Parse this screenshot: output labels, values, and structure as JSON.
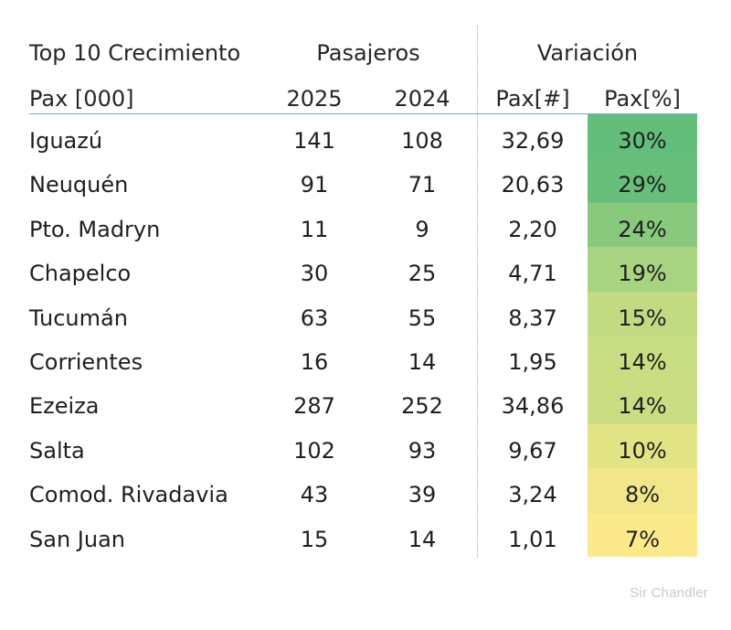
{
  "header": {
    "title": "Top 10 Crecimiento",
    "group_pax": "Pasajeros",
    "group_var": "Variación",
    "unit": "Pax [000]",
    "col_2025": "2025",
    "col_2024": "2024",
    "col_abs": "Pax[#]",
    "col_pct": "Pax[%]"
  },
  "rows": [
    {
      "name": "Iguazú",
      "y2025": "141",
      "y2024": "108",
      "abs": "32,69",
      "pct": "30%",
      "heat_color": "#63be7b"
    },
    {
      "name": "Neuquén",
      "y2025": "91",
      "y2024": "71",
      "abs": "20,63",
      "pct": "29%",
      "heat_color": "#67bf7b"
    },
    {
      "name": "Pto. Madryn",
      "y2025": "11",
      "y2024": "9",
      "abs": "2,20",
      "pct": "24%",
      "heat_color": "#88c97e"
    },
    {
      "name": "Chapelco",
      "y2025": "30",
      "y2024": "25",
      "abs": "4,71",
      "pct": "19%",
      "heat_color": "#a8d380"
    },
    {
      "name": "Tucumán",
      "y2025": "63",
      "y2024": "55",
      "abs": "8,37",
      "pct": "15%",
      "heat_color": "#c2db82"
    },
    {
      "name": "Corrientes",
      "y2025": "16",
      "y2024": "14",
      "abs": "1,95",
      "pct": "14%",
      "heat_color": "#c9dd83"
    },
    {
      "name": "Ezeiza",
      "y2025": "287",
      "y2024": "252",
      "abs": "34,86",
      "pct": "14%",
      "heat_color": "#cadd83"
    },
    {
      "name": "Salta",
      "y2025": "102",
      "y2024": "93",
      "abs": "9,67",
      "pct": "10%",
      "heat_color": "#e3e486"
    },
    {
      "name": "Comod. Rivadavia",
      "y2025": "43",
      "y2024": "39",
      "abs": "3,24",
      "pct": "8%",
      "heat_color": "#f1e689"
    },
    {
      "name": "San Juan",
      "y2025": "15",
      "y2024": "14",
      "abs": "1,01",
      "pct": "7%",
      "heat_color": "#fbe98c"
    }
  ],
  "watermark": "Sir Chandler"
}
